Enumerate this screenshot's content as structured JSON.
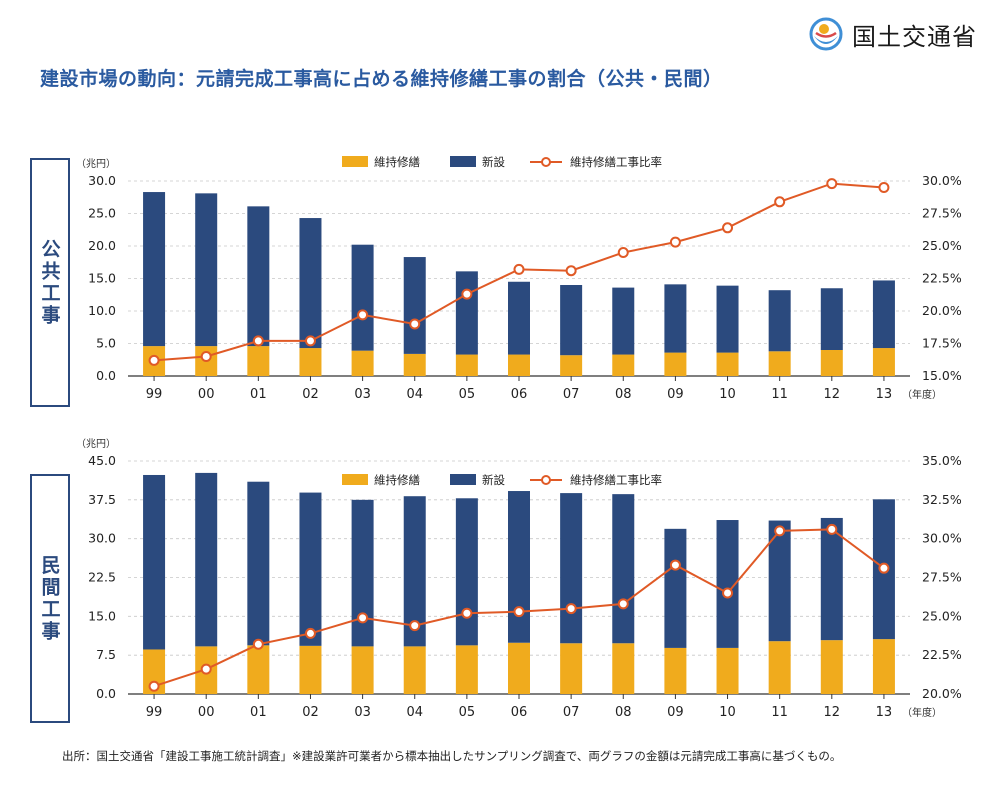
{
  "header": {
    "logo_text": "国土交通省",
    "title": "建設市場の動向：元請完成工事高に占める維持修繕工事の割合（公共・民間）"
  },
  "colors": {
    "maintenance": "#f0ab1d",
    "new": "#2b4a7e",
    "ratio": "#e05a26"
  },
  "footnote": "出所：国土交通省「建設工事施工統計調査」※建設業許可業者から標本抽出したサンプリング調査で、両グラフの金額は元請完成工事高に基づくもの。",
  "chart_data": [
    {
      "type": "bar",
      "side_label": "公共工事",
      "categories": [
        "99",
        "00",
        "01",
        "02",
        "03",
        "04",
        "05",
        "06",
        "07",
        "08",
        "09",
        "10",
        "11",
        "12",
        "13"
      ],
      "x_unit": "（年度）",
      "y_unit": "（兆円）",
      "y_ticks": [
        "30.0",
        "25.0",
        "20.0",
        "15.0",
        "10.0",
        "5.0",
        "0.0"
      ],
      "y2_ticks": [
        "30.0%",
        "27.5%",
        "25.0%",
        "22.5%",
        "20.0%",
        "17.5%",
        "15.0%"
      ],
      "ylim": [
        0,
        30
      ],
      "y2lim": [
        15,
        30
      ],
      "stacked": true,
      "legend_position": "top-center",
      "legend": [
        "維持修繕",
        "新設",
        "維持修繕工事比率"
      ],
      "series": [
        {
          "name": "維持修繕",
          "values": [
            4.6,
            4.6,
            4.6,
            4.3,
            3.9,
            3.4,
            3.3,
            3.3,
            3.2,
            3.3,
            3.6,
            3.6,
            3.8,
            4.0,
            4.3
          ]
        },
        {
          "name": "新設",
          "values": [
            23.7,
            23.5,
            21.5,
            20.0,
            16.3,
            14.9,
            12.8,
            11.2,
            10.8,
            10.3,
            10.5,
            10.3,
            9.4,
            9.5,
            10.4
          ]
        },
        {
          "name": "維持修繕工事比率",
          "axis": "right",
          "values": [
            16.2,
            16.5,
            17.7,
            17.7,
            19.7,
            19.0,
            21.3,
            23.2,
            23.1,
            24.5,
            25.3,
            26.4,
            28.4,
            29.8,
            29.5
          ]
        }
      ]
    },
    {
      "type": "bar",
      "side_label": "民間工事",
      "categories": [
        "99",
        "00",
        "01",
        "02",
        "03",
        "04",
        "05",
        "06",
        "07",
        "08",
        "09",
        "10",
        "11",
        "12",
        "13"
      ],
      "x_unit": "（年度）",
      "y_unit": "（兆円）",
      "y_ticks": [
        "45.0",
        "37.5",
        "30.0",
        "22.5",
        "15.0",
        "7.5",
        "0.0"
      ],
      "y2_ticks": [
        "35.0%",
        "32.5%",
        "30.0%",
        "27.5%",
        "25.0%",
        "22.5%",
        "20.0%"
      ],
      "ylim": [
        0,
        45
      ],
      "y2lim": [
        20,
        35
      ],
      "stacked": true,
      "legend_position": "top-center",
      "legend": [
        "維持修繕",
        "新設",
        "維持修繕工事比率"
      ],
      "series": [
        {
          "name": "維持修繕",
          "values": [
            8.6,
            9.2,
            9.4,
            9.3,
            9.2,
            9.2,
            9.4,
            9.9,
            9.8,
            9.8,
            8.9,
            8.9,
            10.2,
            10.4,
            10.6
          ]
        },
        {
          "name": "新設",
          "values": [
            33.7,
            33.5,
            31.6,
            29.6,
            28.3,
            29.0,
            28.4,
            29.3,
            29.0,
            28.8,
            23.0,
            24.7,
            23.3,
            23.6,
            27.0
          ]
        },
        {
          "name": "維持修繕工事比率",
          "axis": "right",
          "values": [
            20.5,
            21.6,
            23.2,
            23.9,
            24.9,
            24.4,
            25.2,
            25.3,
            25.5,
            25.8,
            28.3,
            26.5,
            30.5,
            30.6,
            28.1
          ]
        }
      ]
    }
  ]
}
